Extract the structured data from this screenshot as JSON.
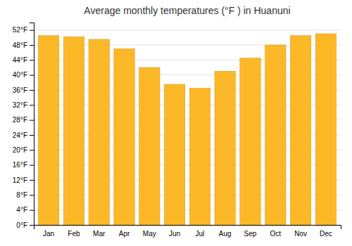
{
  "chart_data": {
    "type": "bar",
    "title": "Average monthly temperatures (°F ) in Huanuni",
    "categories": [
      "Jan",
      "Feb",
      "Mar",
      "Apr",
      "May",
      "Jun",
      "Jul",
      "Aug",
      "Sep",
      "Oct",
      "Nov",
      "Dec"
    ],
    "values": [
      50.5,
      50.2,
      49.5,
      47.0,
      42.0,
      37.5,
      36.5,
      41.0,
      44.5,
      48.0,
      50.5,
      51.0
    ],
    "color": "#FDB827",
    "ylim": [
      0,
      54
    ],
    "yticks": [
      {
        "value": 0,
        "label": "0°F"
      },
      {
        "value": 4,
        "label": "4°F"
      },
      {
        "value": 8,
        "label": "8°F"
      },
      {
        "value": 12,
        "label": "12°F"
      },
      {
        "value": 16,
        "label": "16°F"
      },
      {
        "value": 20,
        "label": "20°F"
      },
      {
        "value": 24,
        "label": "24°F"
      },
      {
        "value": 28,
        "label": "28°F"
      },
      {
        "value": 32,
        "label": "32°F"
      },
      {
        "value": 36,
        "label": "36°F"
      },
      {
        "value": 40,
        "label": "40°F"
      },
      {
        "value": 44,
        "label": "44°F"
      },
      {
        "value": 48,
        "label": "48°F"
      },
      {
        "value": 52,
        "label": "52°F"
      }
    ],
    "grid": true
  }
}
